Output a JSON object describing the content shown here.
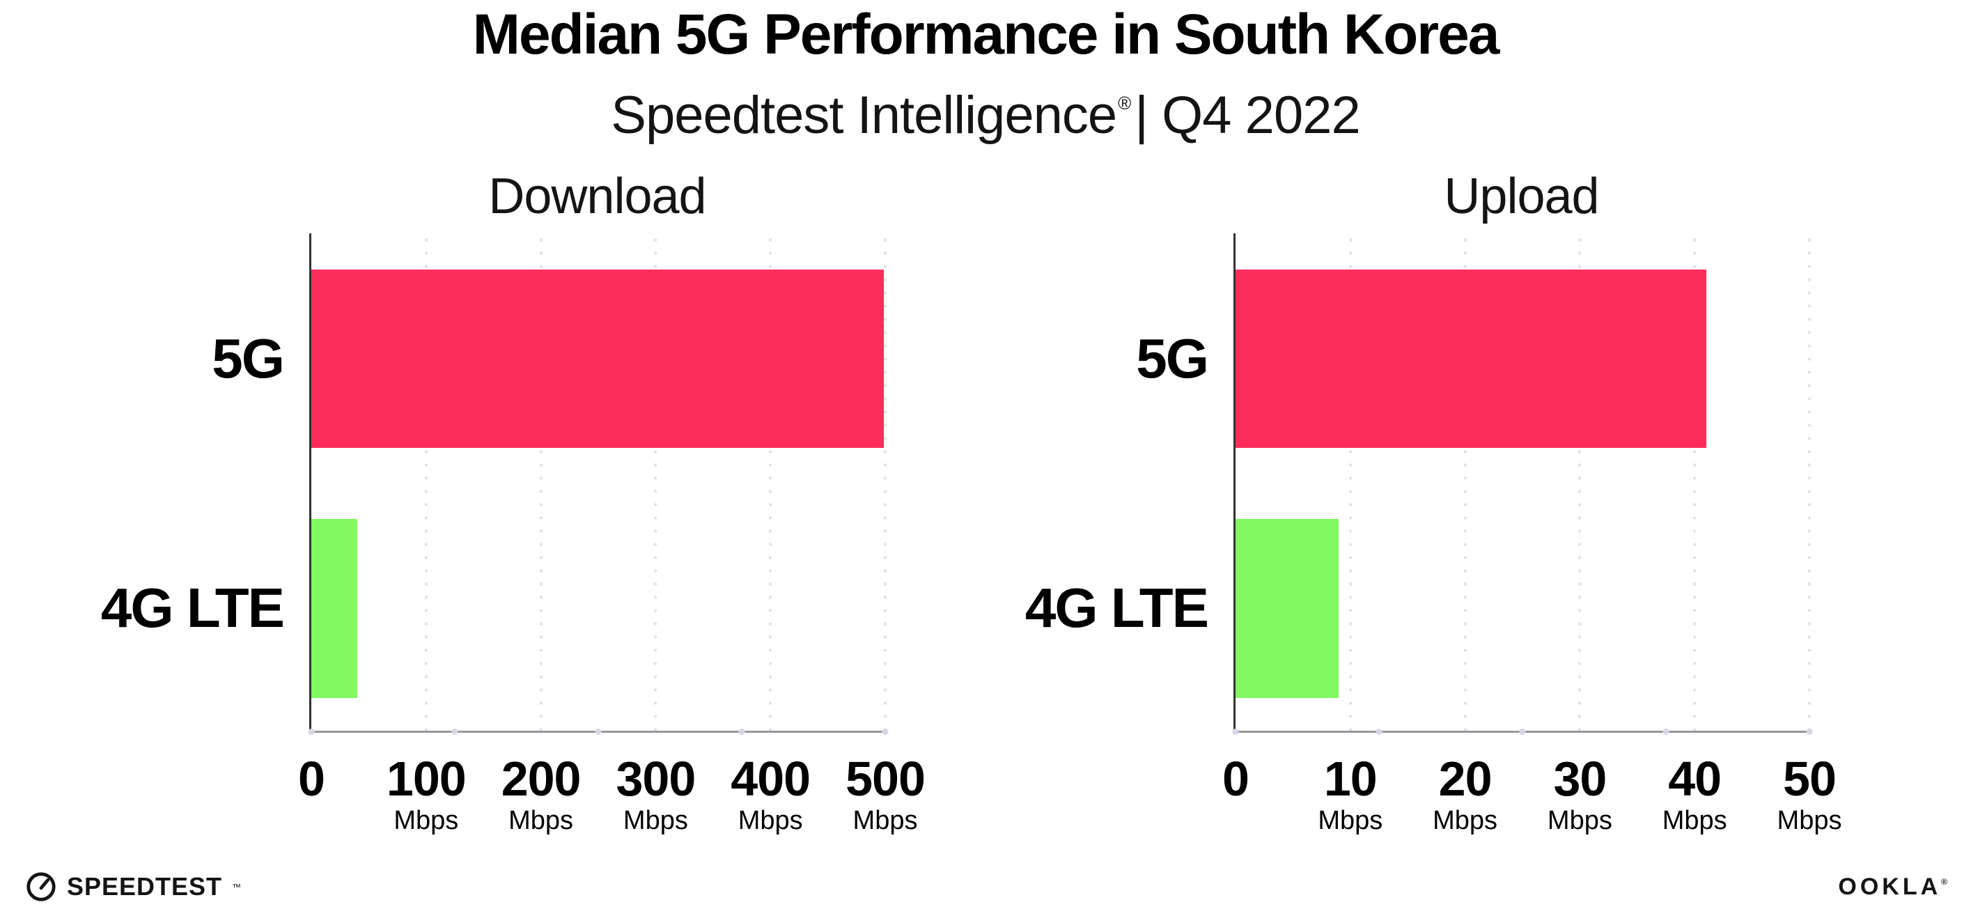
{
  "header": {
    "title": "Median 5G Performance in South Korea",
    "subtitle": {
      "brand": "Speedtest Intelligence",
      "registered_mark": "®",
      "separator": "|",
      "period": "Q4 2022"
    }
  },
  "chart_data": {
    "type": "bar",
    "orientation": "horizontal",
    "title": "Median 5G Performance in South Korea",
    "subtitle": "Speedtest Intelligence® | Q4 2022",
    "categories": [
      "5G",
      "4G LTE"
    ],
    "grid": "vertical dotted gridlines at major ticks",
    "legend_position": "none",
    "colors": {
      "bar_5g": "#FC2D59",
      "bar_4g_lte": "#80FA60",
      "gridline": "#E1E1EC",
      "x_axis": "#97979C",
      "y_axis": "#323236"
    },
    "panels": [
      {
        "title": "Download",
        "unit": "Mbps",
        "xlim": [
          0,
          500
        ],
        "ticks": [
          {
            "label": "0",
            "unit": ""
          },
          {
            "label": "100",
            "unit": "Mbps"
          },
          {
            "label": "200",
            "unit": "Mbps"
          },
          {
            "label": "300",
            "unit": "Mbps"
          },
          {
            "label": "400",
            "unit": "Mbps"
          },
          {
            "label": "500",
            "unit": "Mbps"
          }
        ],
        "bars": [
          {
            "category": "5G",
            "value": 499,
            "color": "#FC2D59"
          },
          {
            "category": "4G LTE",
            "value": 40,
            "color": "#80FA60"
          }
        ]
      },
      {
        "title": "Upload",
        "unit": "Mbps",
        "xlim": [
          0,
          50
        ],
        "ticks": [
          {
            "label": "0",
            "unit": ""
          },
          {
            "label": "10",
            "unit": "Mbps"
          },
          {
            "label": "20",
            "unit": "Mbps"
          },
          {
            "label": "30",
            "unit": "Mbps"
          },
          {
            "label": "40",
            "unit": "Mbps"
          },
          {
            "label": "50",
            "unit": "Mbps"
          }
        ],
        "bars": [
          {
            "category": "5G",
            "value": 41,
            "color": "#FC2D59"
          },
          {
            "category": "4G LTE",
            "value": 9,
            "color": "#80FA60"
          }
        ]
      }
    ]
  },
  "footer": {
    "speedtest_wordmark": "SPEEDTEST",
    "speedtest_trademark": "™",
    "ookla_wordmark": "OOKLA",
    "ookla_registered": "®"
  }
}
